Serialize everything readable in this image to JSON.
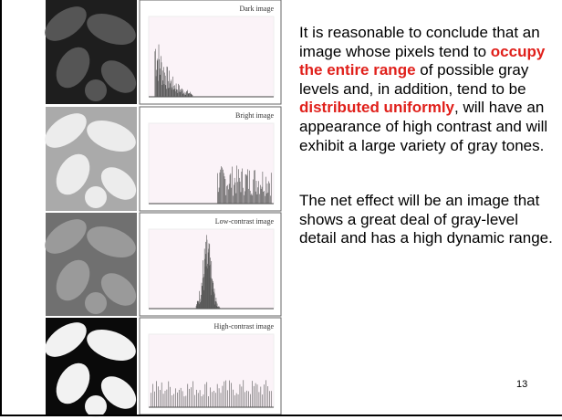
{
  "panels": [
    {
      "label": "Dark image"
    },
    {
      "label": "Bright image"
    },
    {
      "label": "Low-contrast image"
    },
    {
      "label": "High-contrast image"
    }
  ],
  "paragraphs": [
    {
      "runs": [
        {
          "text": "It is reasonable to conclude that an image whose pixels tend to ",
          "emphasis": false
        },
        {
          "text": "occupy the entire range",
          "emphasis": true
        },
        {
          "text": " of possible gray levels and, in addition, tend to be ",
          "emphasis": false
        },
        {
          "text": "distributed uniformly",
          "emphasis": true
        },
        {
          "text": ", will have an appearance of high contrast and will exhibit a large variety of gray tones.",
          "emphasis": false
        }
      ]
    },
    {
      "runs": [
        {
          "text": "The net effect will be an image that shows a great deal of gray-level detail and has a high dynamic range.",
          "emphasis": false
        }
      ]
    }
  ],
  "page_number": 13
}
